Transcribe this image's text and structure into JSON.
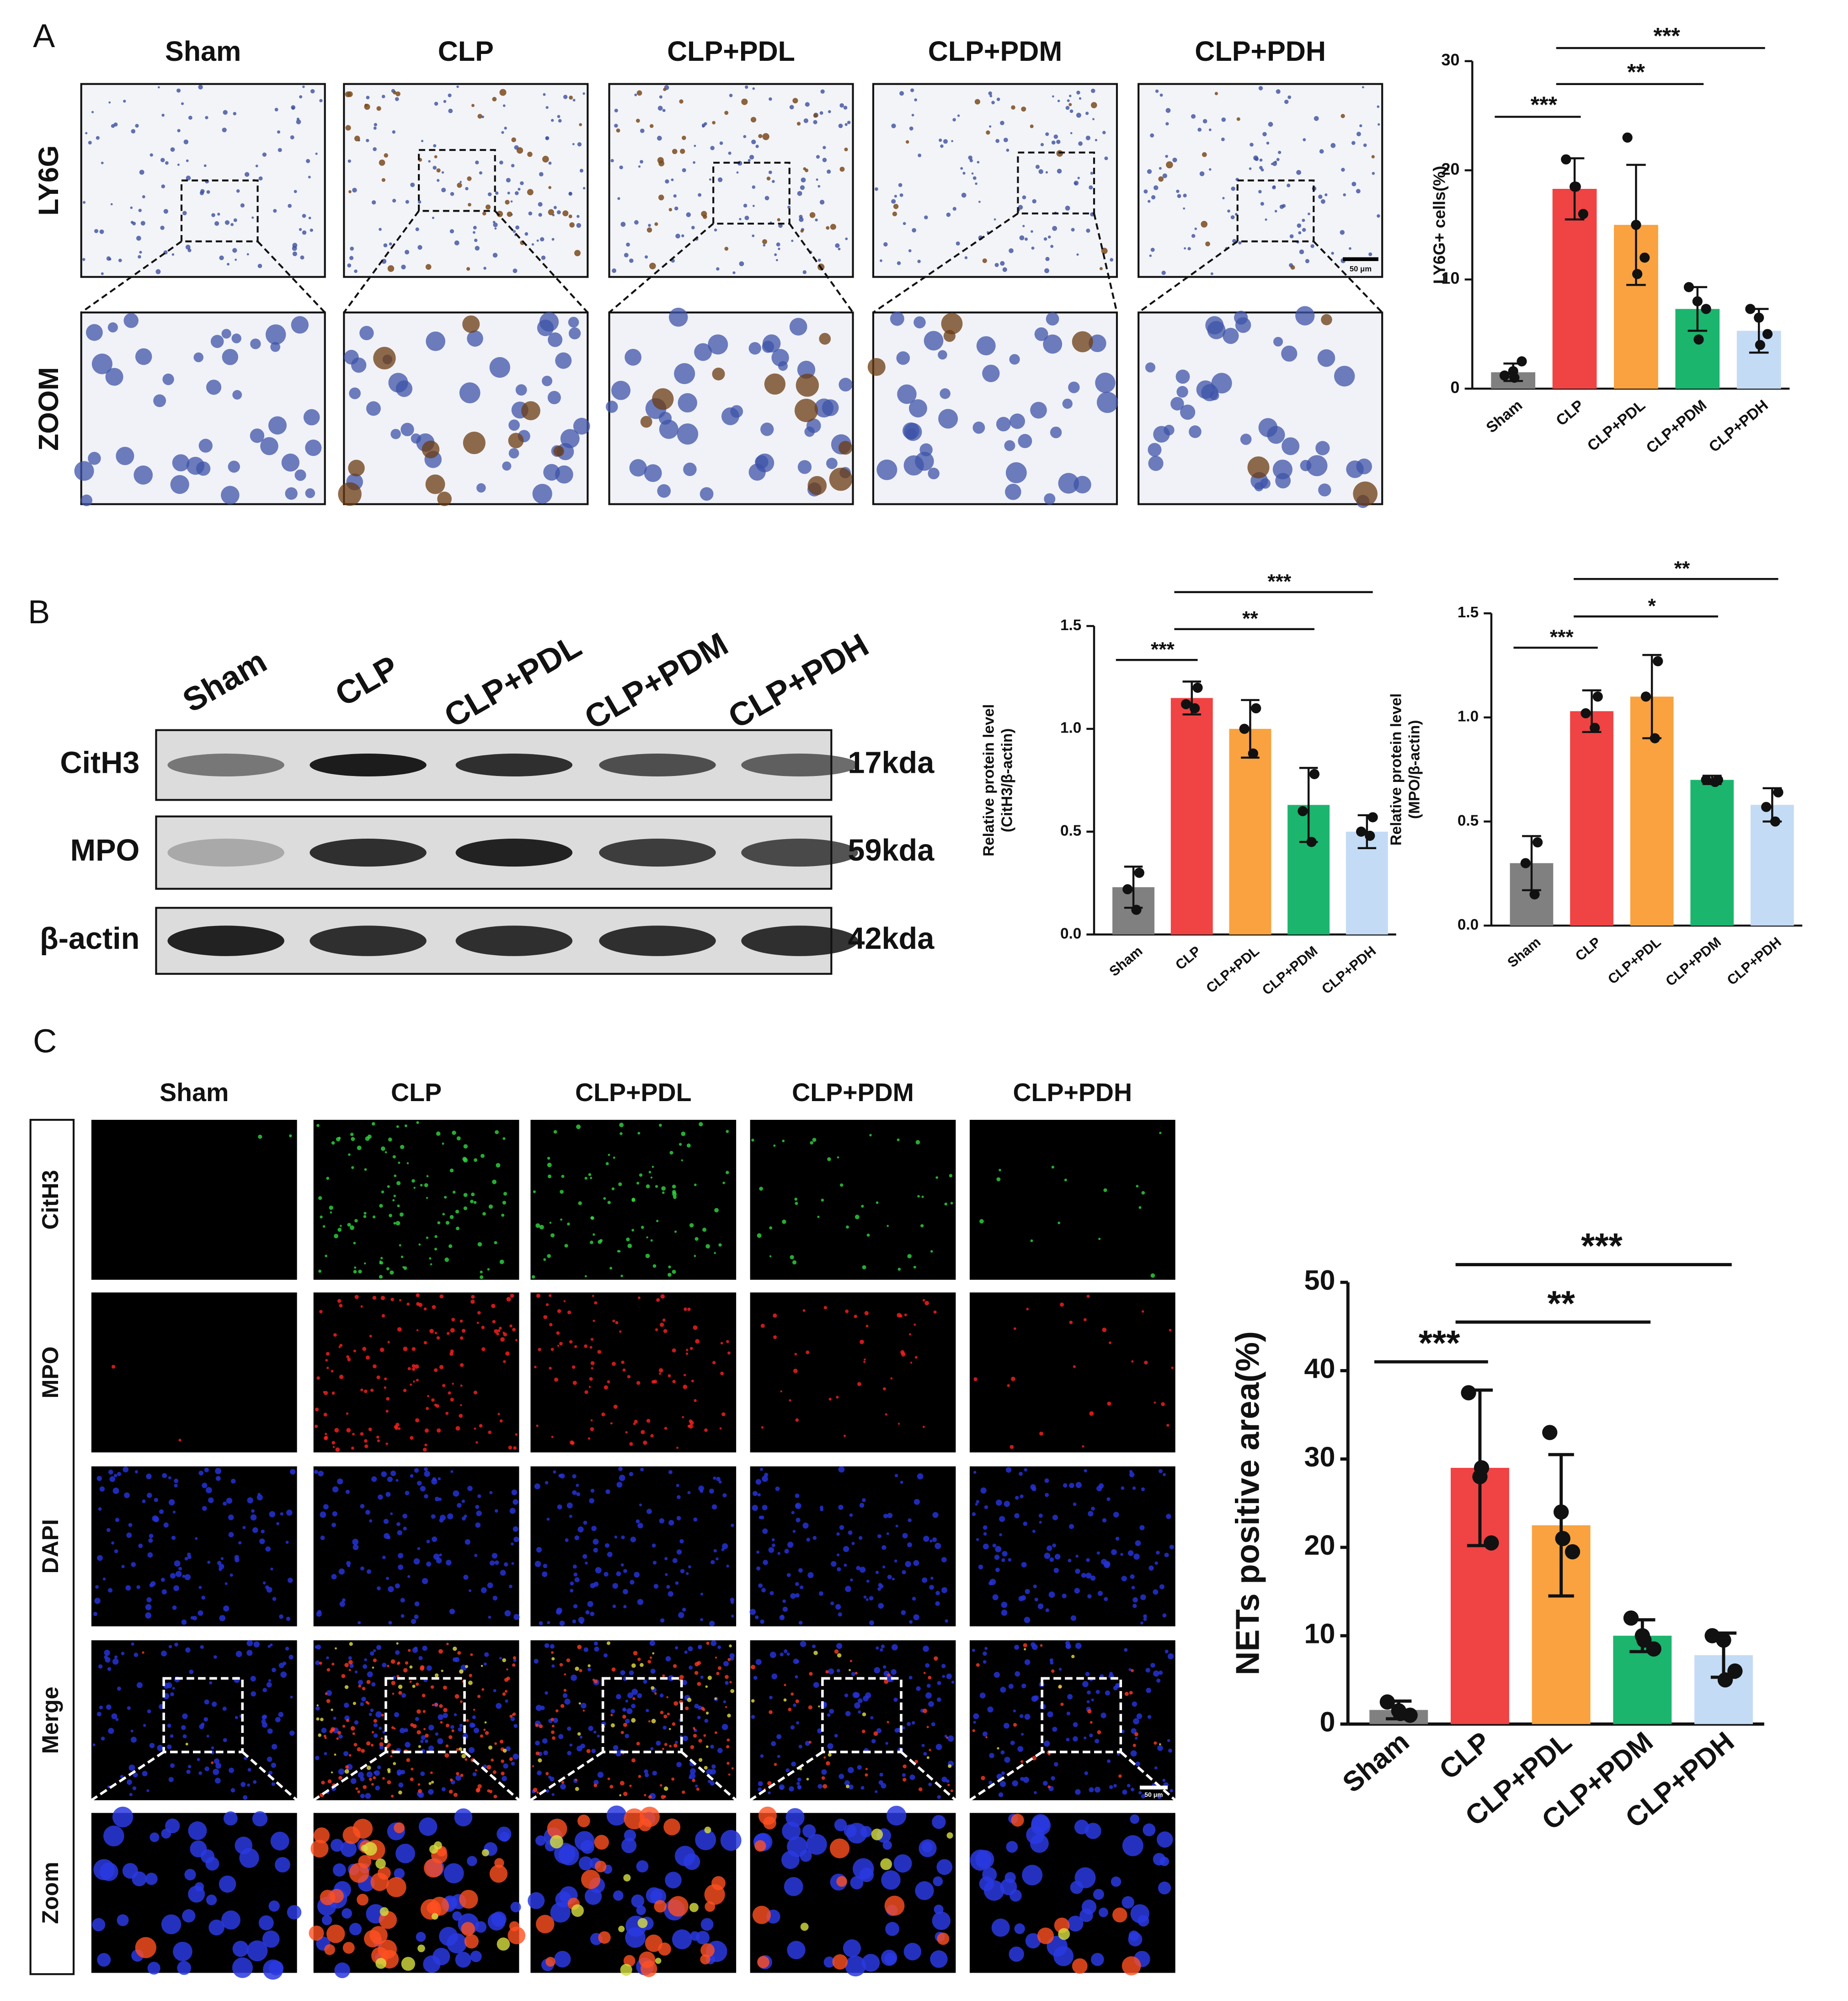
{
  "panel_a": {
    "label": "A",
    "columns": [
      "Sham",
      "CLP",
      "CLP+PDL",
      "CLP+PDM",
      "CLP+PDH"
    ],
    "rows": [
      "LY6G",
      "ZOOM"
    ],
    "scale_bar": "50 μm"
  },
  "panel_b": {
    "label": "B",
    "lanes": [
      "Sham",
      "CLP",
      "CLP+PDL",
      "CLP+PDM",
      "CLP+PDH"
    ],
    "rows": [
      "CitH3",
      "MPO",
      "β-actin"
    ],
    "sizes": [
      "17kda",
      "59kda",
      "42kda"
    ]
  },
  "panel_c": {
    "label": "C",
    "columns": [
      "Sham",
      "CLP",
      "CLP+PDL",
      "CLP+PDM",
      "CLP+PDH"
    ],
    "rows": [
      "CitH3",
      "MPO",
      "DAPI",
      "Merge",
      "Zoom"
    ],
    "scale_bar": "50 μm"
  },
  "chart_data": [
    {
      "type": "bar",
      "ylabel": [
        "LY6G+ cells(%)"
      ],
      "categories": [
        "Sham",
        "CLP",
        "CLP+PDL",
        "CLP+PDM",
        "CLP+PDH"
      ],
      "colors": [
        "#808080",
        "#f04343",
        "#f9a23f",
        "#1bb56e",
        "#c4dbf5"
      ],
      "values": [
        1.5,
        18.3,
        15,
        7.3,
        5.3
      ],
      "errors": [
        0.8,
        2.8,
        5.5,
        2,
        2
      ],
      "points": [
        [
          1.2,
          1.6,
          2.5,
          1.0
        ],
        [
          21,
          18.5,
          16,
          18.5
        ],
        [
          23,
          15,
          12,
          10.5
        ],
        [
          9.3,
          8,
          7.3,
          4.5
        ],
        [
          7.3,
          6.5,
          5,
          4
        ]
      ],
      "ylim": [
        0,
        30
      ],
      "yticks": [
        0,
        10,
        20,
        30
      ],
      "annotations": [
        "***",
        "**",
        "***"
      ]
    },
    {
      "type": "bar",
      "ylabel": [
        "Relative protein level",
        "(CitH3/β-actin)"
      ],
      "categories": [
        "Sham",
        "CLP",
        "CLP+PDL",
        "CLP+PDM",
        "CLP+PDH"
      ],
      "colors": [
        "#808080",
        "#f04343",
        "#f9a23f",
        "#1bb56e",
        "#c4dbf5"
      ],
      "values": [
        0.23,
        1.15,
        1.0,
        0.63,
        0.5
      ],
      "errors": [
        0.1,
        0.08,
        0.14,
        0.18,
        0.08
      ],
      "points": [
        [
          0.3,
          0.22,
          0.12
        ],
        [
          1.2,
          1.12,
          1.1
        ],
        [
          1.1,
          1.0,
          0.88
        ],
        [
          0.78,
          0.6,
          0.45
        ],
        [
          0.57,
          0.5,
          0.48
        ]
      ],
      "ylim": [
        0,
        1.5
      ],
      "yticks": [
        {
          "value": 0,
          "label": "0.0"
        },
        0.5,
        {
          "value": 1,
          "label": "1.0"
        },
        1.5
      ],
      "annotations": [
        "***",
        "**",
        "***"
      ]
    },
    {
      "type": "bar",
      "ylabel": [
        "Relative protein level",
        "(MPO/β-actin)"
      ],
      "categories": [
        "Sham",
        "CLP",
        "CLP+PDL",
        "CLP+PDM",
        "CLP+PDH"
      ],
      "colors": [
        "#808080",
        "#f04343",
        "#f9a23f",
        "#1bb56e",
        "#c4dbf5"
      ],
      "values": [
        0.3,
        1.03,
        1.1,
        0.7,
        0.58
      ],
      "errors": [
        0.13,
        0.1,
        0.2,
        0.02,
        0.08
      ],
      "points": [
        [
          0.4,
          0.3,
          0.15
        ],
        [
          1.1,
          1.02,
          0.95
        ],
        [
          1.27,
          1.1,
          0.9
        ],
        [
          0.7,
          0.7,
          0.69
        ],
        [
          0.64,
          0.57,
          0.5
        ]
      ],
      "ylim": [
        0,
        1.5
      ],
      "yticks": [
        {
          "value": 0,
          "label": "0.0"
        },
        0.5,
        {
          "value": 1,
          "label": "1.0"
        },
        1.5
      ],
      "annotations": [
        "***",
        "*",
        "**"
      ]
    },
    {
      "type": "bar",
      "ylabel": [
        "NETs positive area(%)"
      ],
      "categories": [
        "Sham",
        "CLP",
        "CLP+PDL",
        "CLP+PDM",
        "CLP+PDH"
      ],
      "colors": [
        "#808080",
        "#f04343",
        "#f9a23f",
        "#1bb56e",
        "#c4dbf5"
      ],
      "values": [
        1.6,
        29,
        22.5,
        10,
        7.8
      ],
      "errors": [
        1,
        8.8,
        8,
        1.8,
        2.5
      ],
      "points": [
        [
          2.5,
          1.5,
          1,
          1.2
        ],
        [
          37.5,
          28,
          20.5,
          29
        ],
        [
          33,
          24,
          19.5,
          21
        ],
        [
          12,
          10,
          8.5,
          9.5
        ],
        [
          10,
          9.5,
          6,
          5
        ]
      ],
      "ylim": [
        0,
        50
      ],
      "yticks": [
        0,
        10,
        20,
        30,
        40,
        50
      ],
      "annotations": [
        "***",
        "**",
        "***"
      ]
    }
  ]
}
